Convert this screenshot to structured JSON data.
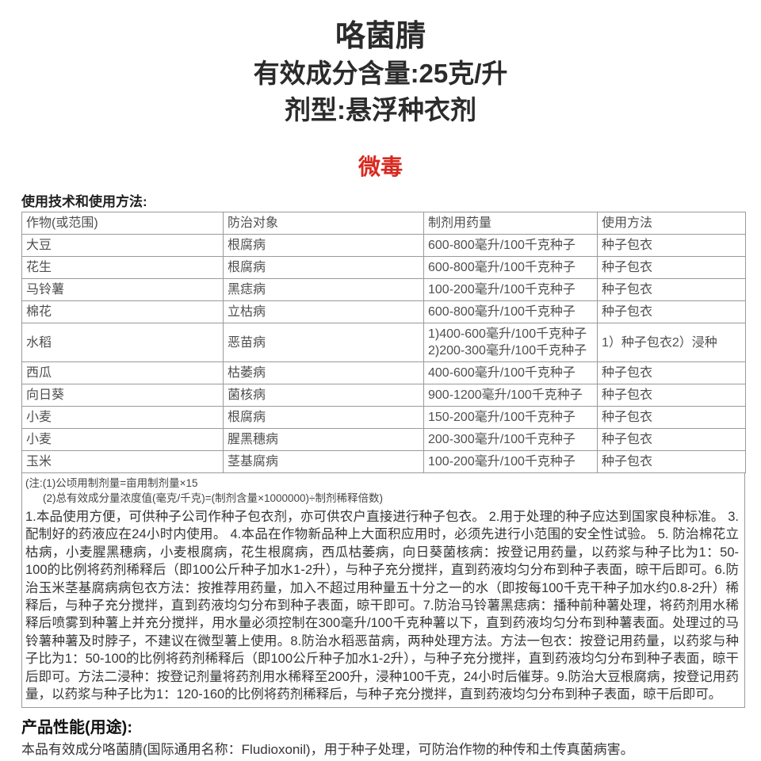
{
  "header": {
    "product_name": "咯菌腈",
    "active_ingredient_line": "有效成分含量:25克/升",
    "formulation_line": "剂型:悬浮种衣剂",
    "toxicity_label": "微毒",
    "toxicity_color": "#d8291f"
  },
  "usage_section": {
    "heading": "使用技术和使用方法:",
    "table": {
      "headers": [
        "作物(或范围)",
        "防治对象",
        "制剂用药量",
        "使用方法"
      ],
      "rows": [
        [
          "大豆",
          "根腐病",
          "600-800毫升/100千克种子",
          "种子包衣"
        ],
        [
          "花生",
          "根腐病",
          "600-800毫升/100千克种子",
          "种子包衣"
        ],
        [
          "马铃薯",
          "黑痣病",
          "100-200毫升/100千克种子",
          "种子包衣"
        ],
        [
          "棉花",
          "立枯病",
          "600-800毫升/100千克种子",
          "种子包衣"
        ],
        [
          "水稻",
          "恶苗病",
          "1)400-600毫升/100千克种子\n2)200-300毫升/100千克种子",
          "1）种子包衣2）浸种"
        ],
        [
          "西瓜",
          "枯萎病",
          "400-600毫升/100千克种子",
          "种子包衣"
        ],
        [
          "向日葵",
          "菌核病",
          "900-1200毫升/100千克种子",
          "种子包衣"
        ],
        [
          "小麦",
          "根腐病",
          "150-200毫升/100千克种子",
          "种子包衣"
        ],
        [
          "小麦",
          "腥黑穗病",
          "200-300毫升/100千克种子",
          "种子包衣"
        ],
        [
          "玉米",
          "茎基腐病",
          "100-200毫升/100千克种子",
          "种子包衣"
        ]
      ]
    },
    "notes": [
      "(注:(1)公顷用制剂量=亩用制剂量×15",
      "(2)总有效成分量浓度值(毫克/千克)=(制剂含量×1000000)÷制剂稀释倍数)"
    ],
    "instructions": "1.本品使用方便，可供种子公司作种子包衣剂，亦可供农户直接进行种子包衣。 2.用于处理的种子应达到国家良种标准。 3.配制好的药液应在24小时内使用。 4.本品在作物新品种上大面积应用时，必须先进行小范围的安全性试验。 5. 防治棉花立枯病，小麦腥黑穗病，小麦根腐病，花生根腐病，西瓜枯萎病，向日葵菌核病：按登记用药量，以药浆与种子比为1：50-100的比例将药剂稀释后（即100公斤种子加水1-2升），与种子充分搅拌，直到药液均匀分布到种子表面，晾干后即可。6.防治玉米茎基腐病病包衣方法：按推荐用药量，加入不超过用种量五十分之一的水（即按每100千克干种子加水约0.8-2升）稀释后，与种子充分搅拌，直到药液均匀分布到种子表面，晾干即可。7.防治马铃薯黑痣病：播种前种薯处理，将药剂用水稀释后喷雾到种薯上并充分搅拌，用水量必须控制在300毫升/100千克种薯以下，直到药液均匀分布到种薯表面。处理过的马铃薯种薯及时脖子，不建议在微型薯上使用。8.防治水稻恶苗病，两种处理方法。方法一包衣：按登记用药量，以药浆与种子比为1：50-100的比例将药剂稀释后（即100公斤种子加水1-2升），与种子充分搅拌，直到药液均匀分布到种子表面，晾干后即可。方法二浸种：按登记剂量将药剂用水稀释至200升，浸种100千克，24小时后催芽。9.防治大豆根腐病，按登记用药量，以药浆与种子比为1：120-160的比例将药剂稀释后，与种子充分搅拌，直到药液均匀分布到种子表面，晾干后即可。"
  },
  "performance_section": {
    "heading": "产品性能(用途):",
    "body": "本品有效成分咯菌腈(国际通用名称：Fludioxonil)，用于种子处理，可防治作物的种传和土传真菌病害。"
  }
}
